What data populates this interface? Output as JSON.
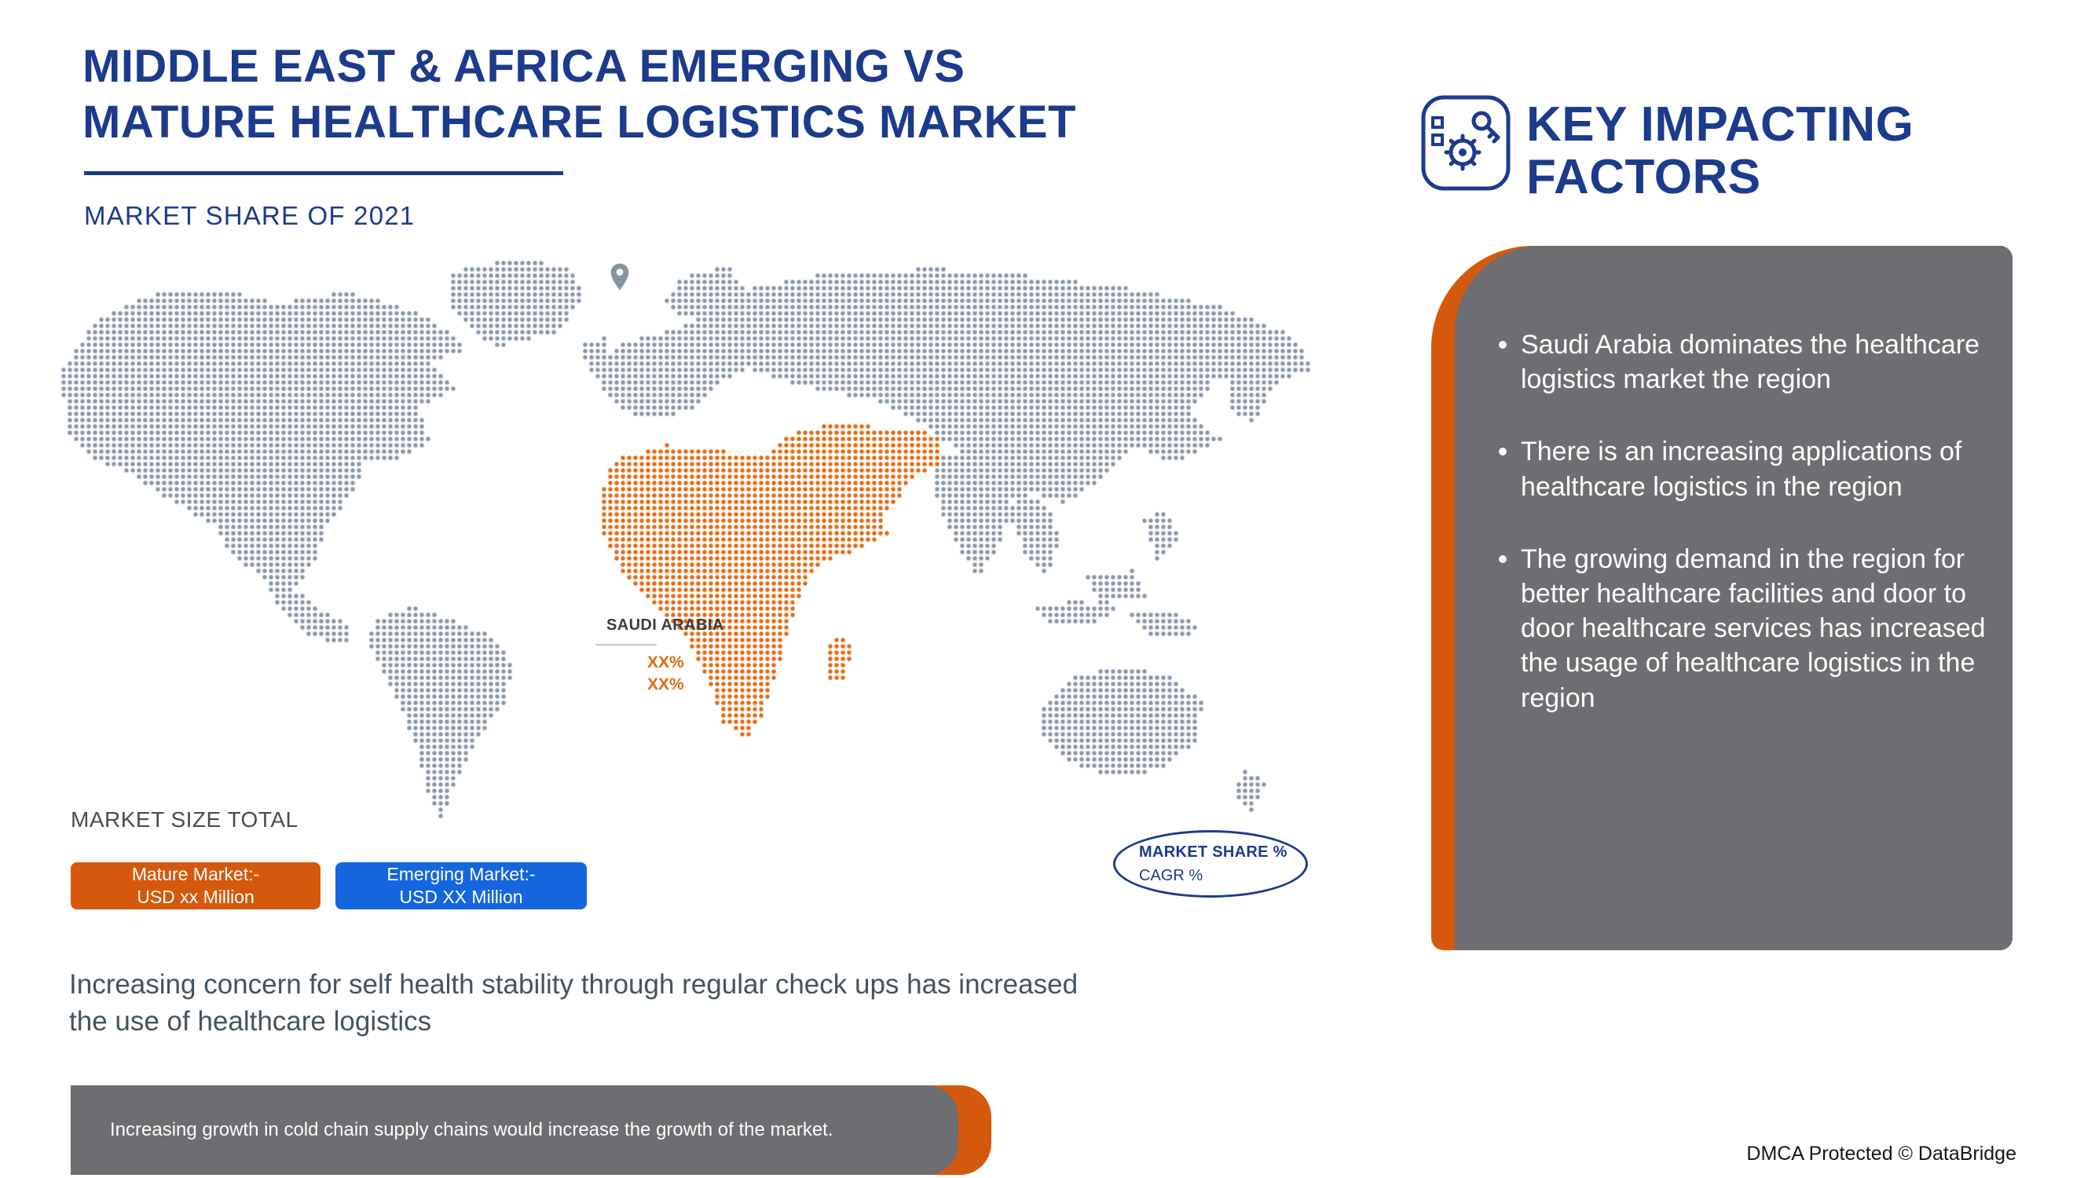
{
  "colors": {
    "navy": "#1c3b8c",
    "orange": "#d4590d",
    "blue": "#1566dd",
    "panel_gray": "#6d6e71",
    "map_dot": "#8795a5",
    "map_dot_highlight": "#e06a12",
    "note_text": "#44545e"
  },
  "header": {
    "title_line1": "MIDDLE EAST & AFRICA EMERGING VS",
    "title_line2": "MATURE HEALTHCARE LOGISTICS MARKET",
    "subtitle": "MARKET SHARE OF 2021"
  },
  "map": {
    "country_label": "SAUDI ARABIA",
    "market_share_value": "XX%",
    "cagr_value": "XX%"
  },
  "market_size": {
    "section_label": "MARKET SIZE TOTAL",
    "mature": {
      "line1": "Mature Market:-",
      "line2": "USD xx Million"
    },
    "emerging": {
      "line1": "Emerging Market:-",
      "line2": "USD XX Million"
    }
  },
  "share_badge": {
    "line1": "MARKET SHARE %",
    "line2": "CAGR %"
  },
  "note": "Increasing concern for self health stability through regular check ups has increased the use of healthcare logistics",
  "bottom_banner": "Increasing growth in cold chain supply chains would increase the growth of the market.",
  "key_factors": {
    "title_line1": "KEY IMPACTING",
    "title_line2": "FACTORS",
    "bullets": [
      "Saudi Arabia dominates the healthcare logistics market the region",
      "There is an increasing applications of healthcare logistics in the region",
      "The growing demand in the region for better healthcare facilities and door to door healthcare services has increased the usage of healthcare logistics in the region"
    ]
  },
  "footer": {
    "dmca": "DMCA Protected © DataBridge"
  }
}
